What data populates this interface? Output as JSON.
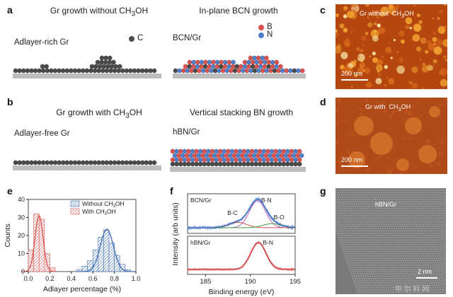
{
  "panels": {
    "a": {
      "label": "a",
      "left_title": "Gr growth without CH3OH",
      "right_title": "In-plane BCN growth",
      "left_caption": "Adlayer-rich Gr",
      "right_caption": "BCN/Gr",
      "legend_c": "C",
      "legend_b": "B",
      "legend_n": "N"
    },
    "b": {
      "label": "b",
      "left_title": "Gr growth with CH3OH",
      "right_title": "Vertical stacking BN growth",
      "left_caption": "Adlayer-free Gr",
      "right_caption": "hBN/Gr"
    },
    "c": {
      "label": "c",
      "image_label": "Gr without  CH3OH",
      "scale": "200 nm"
    },
    "d": {
      "label": "d",
      "image_label": "Gr with  CH3OH",
      "scale": "200 nm"
    },
    "e": {
      "label": "e"
    },
    "f": {
      "label": "f"
    },
    "g": {
      "label": "g",
      "image_label": "hBN/Gr",
      "scale": "2 nm",
      "watermark": "中 尔 料 网"
    }
  },
  "colors": {
    "carbon": "#4a4a4a",
    "boron": "#d9534f",
    "nitrogen": "#4f7fc9",
    "substrate": "#bdbdbd",
    "afm_bg": "#b3470f",
    "afm_light": "#f0a030"
  },
  "chart_data": [
    {
      "panel": "e",
      "type": "bar",
      "xlabel": "Adlayer percentage (%)",
      "ylabel": "Counts",
      "xlim": [
        0.0,
        1.0
      ],
      "ylim": [
        0,
        40
      ],
      "xticks": [
        "0.0",
        "0.2",
        "0.4",
        "0.6",
        "0.8",
        "1.0"
      ],
      "yticks": [
        "0",
        "10",
        "20",
        "30",
        "40"
      ],
      "legend_position": "top-right",
      "series": [
        {
          "name": "Without CH3OH",
          "color": "#3f6fb5",
          "bin_centers": [
            0.475,
            0.525,
            0.575,
            0.625,
            0.675,
            0.725,
            0.775,
            0.825,
            0.875,
            0.925
          ],
          "values": [
            1,
            3,
            6,
            12,
            19,
            23,
            16,
            9,
            4,
            1
          ],
          "fit_peak": 0.73,
          "fit_height": 23.5,
          "fit_width": 0.09
        },
        {
          "name": "With CH3OH",
          "color": "#d9534f",
          "bin_centers": [
            0.025,
            0.075,
            0.125,
            0.175,
            0.225
          ],
          "values": [
            12,
            32,
            29,
            10,
            2
          ],
          "fit_peak": 0.1,
          "fit_height": 31,
          "fit_width": 0.055
        }
      ]
    },
    {
      "panel": "f",
      "type": "line",
      "xlabel": "Binding energy (eV)",
      "ylabel": "Intensity (arb units)",
      "xlim": [
        183,
        195
      ],
      "xticks": [
        "185",
        "190",
        "195"
      ],
      "subplots": [
        {
          "label": "BCN/Gr",
          "peak_labels": [
            "B-N",
            "B-C",
            "B-O"
          ],
          "peak_positions": [
            190.8,
            188.6,
            192.4
          ]
        },
        {
          "label": "hBN/Gr",
          "peak_labels": [
            "B-N"
          ],
          "peak_positions": [
            190.9
          ]
        }
      ]
    }
  ]
}
